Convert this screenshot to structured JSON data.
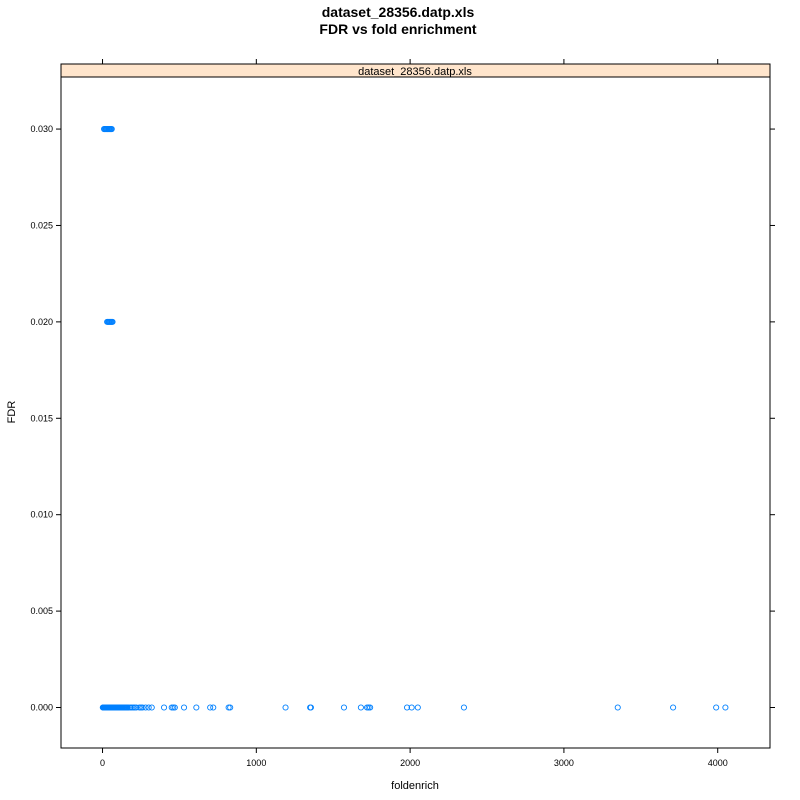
{
  "chart_data": {
    "type": "scatter",
    "title": "dataset_28356.datp.xls",
    "subtitle": "FDR vs fold enrichment",
    "strip_label": "dataset_28356.datp.xls",
    "xlabel": "foldenrich",
    "ylabel": "FDR",
    "xlim": [
      -270,
      4340
    ],
    "ylim": [
      -0.0021,
      0.0327
    ],
    "x_ticks": [
      0,
      1000,
      2000,
      3000,
      4000
    ],
    "y_ticks": [
      0.0,
      0.005,
      0.01,
      0.015,
      0.02,
      0.025,
      0.03
    ],
    "x_tick_labels": [
      "0",
      "1000",
      "2000",
      "3000",
      "4000"
    ],
    "y_tick_labels": [
      "0.000",
      "0.005",
      "0.010",
      "0.015",
      "0.020",
      "0.025",
      "0.030"
    ],
    "grid": false,
    "legend": "none",
    "point_color": "#0080ff",
    "strip_color": "#ffe5cc",
    "series": [
      {
        "x": [
          2,
          5,
          8,
          10,
          12,
          14,
          16,
          18,
          20,
          22,
          24,
          26,
          28,
          30,
          32,
          34,
          36,
          38,
          40,
          42,
          44,
          46,
          48,
          50,
          52,
          55,
          58,
          60,
          63,
          66,
          70,
          74,
          78,
          82,
          86,
          90,
          95,
          100,
          105,
          110,
          115,
          120,
          125,
          130,
          135,
          140,
          145,
          150,
          155,
          160,
          170,
          180,
          190,
          200,
          210,
          220,
          240,
          250,
          260,
          280,
          300,
          320,
          400,
          450,
          460,
          470,
          530,
          610,
          700,
          720,
          820,
          830,
          1190,
          1350,
          1355,
          1570,
          1680,
          1720,
          1730,
          1740,
          1980,
          2010,
          2050,
          2350,
          3350,
          3710,
          3990,
          4050,
          10,
          15,
          20,
          25,
          30,
          35,
          40,
          45,
          50,
          55,
          60,
          30,
          35,
          40,
          45,
          50,
          55,
          60,
          65
        ],
        "y": [
          0,
          0,
          0,
          0,
          0,
          0,
          0,
          0,
          0,
          0,
          0,
          0,
          0,
          0,
          0,
          0,
          0,
          0,
          0,
          0,
          0,
          0,
          0,
          0,
          0,
          0,
          0,
          0,
          0,
          0,
          0,
          0,
          0,
          0,
          0,
          0,
          0,
          0,
          0,
          0,
          0,
          0,
          0,
          0,
          0,
          0,
          0,
          0,
          0,
          0,
          0,
          0,
          0,
          0,
          0,
          0,
          0,
          0,
          0,
          0,
          0,
          0,
          0,
          0,
          0,
          0,
          0,
          0,
          0,
          0,
          0,
          0,
          0,
          0,
          0,
          0,
          0,
          0,
          0,
          0,
          0,
          0,
          0,
          0,
          0,
          0,
          0,
          0,
          0.03,
          0.03,
          0.03,
          0.03,
          0.03,
          0.03,
          0.03,
          0.03,
          0.03,
          0.03,
          0.03,
          0.02,
          0.02,
          0.02,
          0.02,
          0.02,
          0.02,
          0.02,
          0.02
        ]
      }
    ]
  }
}
